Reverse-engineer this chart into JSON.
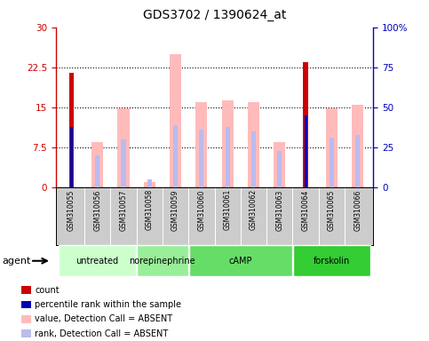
{
  "title": "GDS3702 / 1390624_at",
  "samples": [
    "GSM310055",
    "GSM310056",
    "GSM310057",
    "GSM310058",
    "GSM310059",
    "GSM310060",
    "GSM310061",
    "GSM310062",
    "GSM310063",
    "GSM310064",
    "GSM310065",
    "GSM310066"
  ],
  "groups": [
    {
      "name": "untreated",
      "indices": [
        0,
        1,
        2
      ],
      "color": "#ccffcc"
    },
    {
      "name": "norepinephrine",
      "indices": [
        3,
        4
      ],
      "color": "#99ee99"
    },
    {
      "name": "cAMP",
      "indices": [
        5,
        6,
        7,
        8
      ],
      "color": "#66dd66"
    },
    {
      "name": "forskolin",
      "indices": [
        9,
        10,
        11
      ],
      "color": "#33cc33"
    }
  ],
  "value_bars": [
    21.5,
    8.5,
    14.8,
    1.0,
    25.0,
    16.0,
    16.4,
    16.0,
    8.5,
    0.0,
    14.8,
    15.5
  ],
  "rank_bars_pct": [
    0,
    20,
    30,
    5,
    39,
    36,
    38,
    35,
    23,
    0,
    31,
    33
  ],
  "count_bars": [
    21.5,
    0,
    0,
    0,
    0,
    0,
    0,
    0,
    0,
    23.5,
    0,
    0
  ],
  "percentile_bars_pct": [
    38,
    0,
    0,
    0,
    0,
    0,
    0,
    0,
    0,
    45,
    0,
    0
  ],
  "value_absent": [
    false,
    true,
    true,
    true,
    true,
    true,
    true,
    true,
    true,
    false,
    true,
    true
  ],
  "ylim_left": [
    0,
    30
  ],
  "ylim_right": [
    0,
    100
  ],
  "yticks_left": [
    0,
    7.5,
    15,
    22.5,
    30
  ],
  "ytick_labels_left": [
    "0",
    "7.5",
    "15",
    "22.5",
    "30"
  ],
  "yticks_right": [
    0,
    25,
    50,
    75,
    100
  ],
  "ytick_labels_right": [
    "0",
    "25",
    "50",
    "75",
    "100%"
  ],
  "color_value_absent": "#ffbbbb",
  "color_rank_absent": "#bbbbee",
  "color_count": "#cc0000",
  "color_percentile": "#0000bb",
  "plot_bg": "#ffffff",
  "axes_bg": "#ffffff",
  "grid_color": "#000000",
  "sample_box_color": "#cccccc",
  "legend_items": [
    {
      "label": "count",
      "color": "#cc0000"
    },
    {
      "label": "percentile rank within the sample",
      "color": "#0000bb"
    },
    {
      "label": "value, Detection Call = ABSENT",
      "color": "#ffbbbb"
    },
    {
      "label": "rank, Detection Call = ABSENT",
      "color": "#bbbbee"
    }
  ]
}
